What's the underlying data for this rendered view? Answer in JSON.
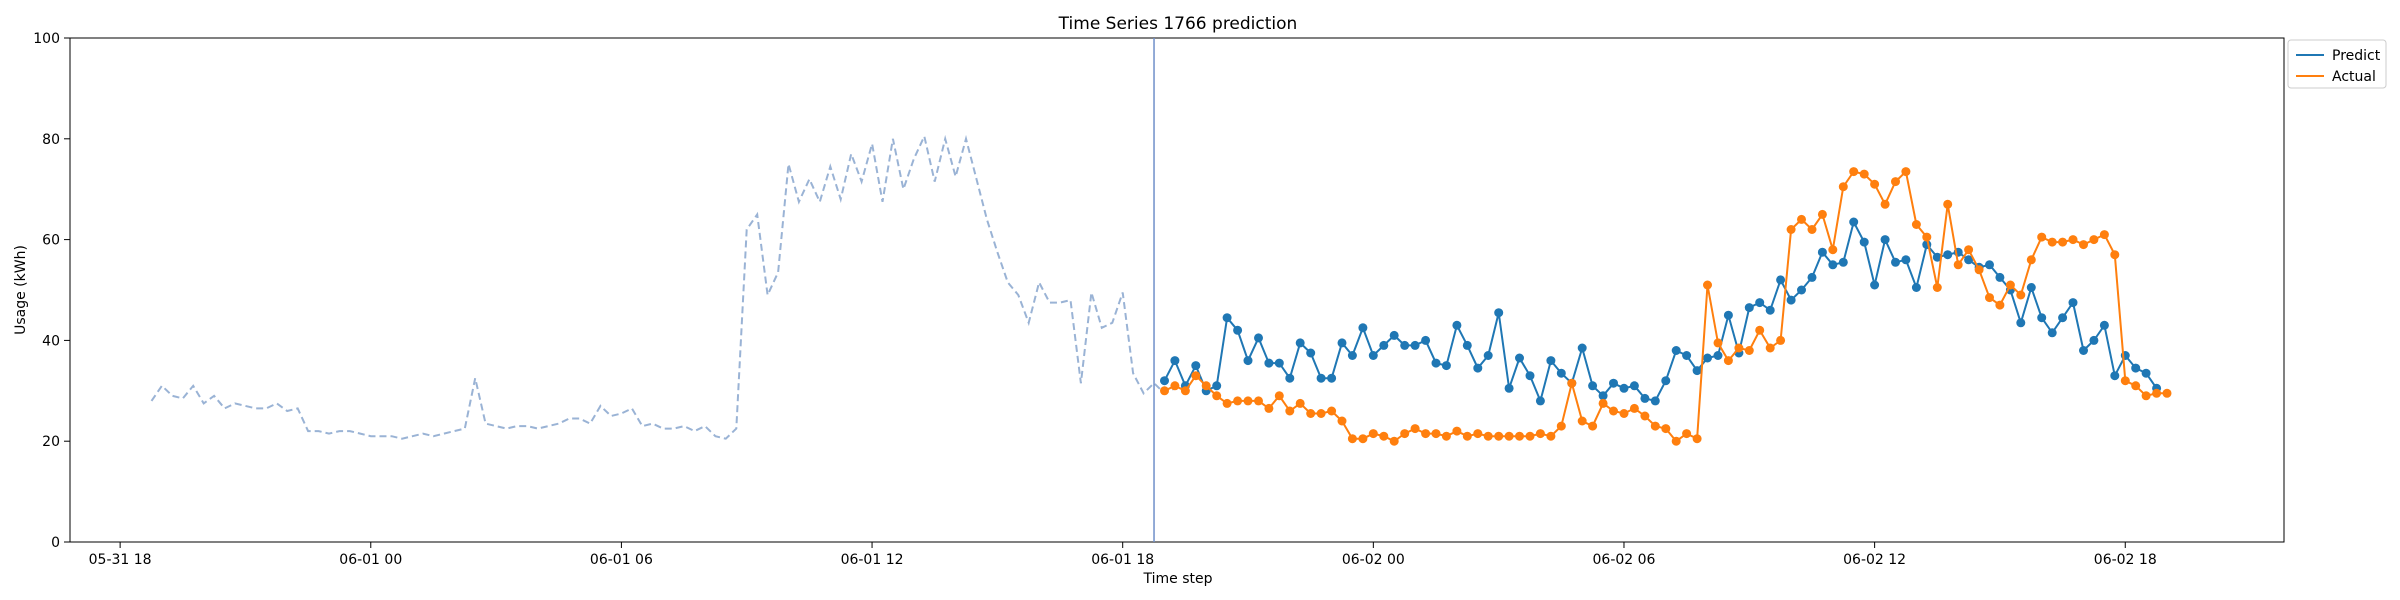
{
  "chart_data": {
    "type": "line",
    "title": "Time Series 1766 prediction",
    "xlabel": "Time step",
    "ylabel": "Usage (kWh)",
    "ylim": [
      0,
      100
    ],
    "y_ticks": [
      0,
      20,
      40,
      60,
      80,
      100
    ],
    "x_ticks": [
      "05-31 18",
      "06-01 00",
      "06-01 06",
      "06-01 12",
      "06-01 18",
      "06-02 00",
      "06-02 06",
      "06-02 12",
      "06-02 18"
    ],
    "x_range_hours": [
      -1.2,
      51.8
    ],
    "x_origin_label": "05-31 18",
    "legend_position": "top-right",
    "grid": false,
    "vertical_marker_hours": 24.75,
    "history": {
      "style": "dashed",
      "color": "#9ab3d5",
      "start_hours": 0.75,
      "step_hours": 0.25,
      "values": [
        28,
        31,
        29,
        28.5,
        31,
        27.5,
        29,
        26.5,
        27.5,
        27,
        26.5,
        26.5,
        27.5,
        26,
        26.5,
        22,
        22,
        21.5,
        22,
        22,
        21.5,
        21,
        21,
        21,
        20.5,
        21,
        21.5,
        21,
        21.5,
        22,
        22.5,
        32.5,
        23.5,
        23,
        22.5,
        23,
        23,
        22.5,
        23,
        23.5,
        24.5,
        24.5,
        23.5,
        27,
        25,
        25.5,
        26.5,
        23,
        23.5,
        22.5,
        22.5,
        23,
        22,
        23,
        21,
        20.5,
        22.5,
        62,
        65,
        49,
        53.5,
        75,
        67.5,
        72,
        67.5,
        74.5,
        68,
        77,
        71.5,
        79,
        67.5,
        80,
        70,
        76,
        80.5,
        71.5,
        80,
        72.5,
        80,
        72,
        64,
        57.5,
        51.5,
        49,
        43.5,
        51.5,
        47.5,
        47.5,
        48,
        31.5,
        49.5,
        42.5,
        43.5,
        49.5,
        33.5,
        29.5,
        31.5,
        29.5,
        30.5
      ]
    },
    "series": [
      {
        "name": "Predict",
        "color": "#1f77b4",
        "start_hours": 25,
        "step_hours": 0.25,
        "values": [
          32,
          36,
          31,
          35,
          30,
          31,
          44.5,
          42,
          36,
          40.5,
          35.5,
          35.5,
          32.5,
          39.5,
          37.5,
          32.5,
          32.5,
          39.5,
          37,
          42.5,
          37,
          39,
          41,
          39,
          39,
          40,
          35.5,
          35,
          43,
          39,
          34.5,
          37,
          45.5,
          30.5,
          36.5,
          33,
          28,
          36,
          33.5,
          31.5,
          38.5,
          31,
          29,
          31.5,
          30.5,
          31,
          28.5,
          28,
          32,
          38,
          37,
          34,
          36.5,
          37,
          45,
          37.5,
          46.5,
          47.5,
          46,
          52,
          48,
          50,
          52.5,
          57.5,
          55,
          55.5,
          63.5,
          59.5,
          51,
          60,
          55.5,
          56,
          50.5,
          59,
          56.5,
          57,
          57.5,
          56,
          54.5,
          55,
          52.5,
          50,
          43.5,
          50.5,
          44.5,
          41.5,
          44.5,
          47.5,
          38,
          40,
          43,
          33,
          37,
          34.5,
          33.5,
          30.5
        ]
      },
      {
        "name": "Actual",
        "color": "#ff7f0e",
        "start_hours": 25,
        "step_hours": 0.25,
        "values": [
          30,
          31,
          30,
          33,
          31,
          29,
          27.5,
          28,
          28,
          28,
          26.5,
          29,
          26,
          27.5,
          25.5,
          25.5,
          26,
          24,
          20.5,
          20.5,
          21.5,
          21,
          20,
          21.5,
          22.5,
          21.5,
          21.5,
          21,
          22,
          21,
          21.5,
          21,
          21,
          21,
          21,
          21,
          21.5,
          21,
          23,
          31.5,
          24,
          23,
          27.5,
          26,
          25.5,
          26.5,
          25,
          23,
          22.5,
          20,
          21.5,
          20.5,
          51,
          39.5,
          36,
          38.5,
          38,
          42,
          38.5,
          40,
          62,
          64,
          62,
          65,
          58,
          70.5,
          73.5,
          73,
          71,
          67,
          71.5,
          73.5,
          63,
          60.5,
          50.5,
          67,
          55,
          58,
          54,
          48.5,
          47,
          51,
          49,
          56,
          60.5,
          59.5,
          59.5,
          60,
          59,
          60,
          61,
          57,
          32,
          31,
          29,
          29.5,
          29.5
        ]
      }
    ]
  }
}
